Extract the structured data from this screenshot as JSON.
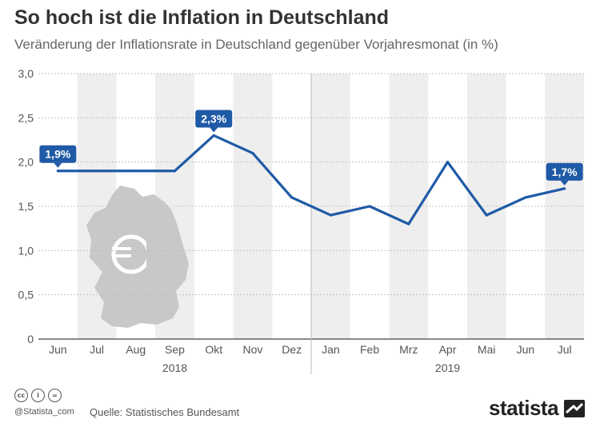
{
  "header": {
    "title": "So hoch ist die Inflation in Deutschland",
    "subtitle": "Veränderung der Inflationsrate in Deutschland gegenüber Vorjahresmonat (in %)"
  },
  "chart_data": {
    "type": "line",
    "categories": [
      "Jun",
      "Jul",
      "Aug",
      "Sep",
      "Okt",
      "Nov",
      "Dez",
      "Jan",
      "Feb",
      "Mrz",
      "Apr",
      "Mai",
      "Jun",
      "Jul"
    ],
    "year_labels": [
      {
        "label": "2018",
        "from": 0,
        "to": 6
      },
      {
        "label": "2019",
        "from": 7,
        "to": 13
      }
    ],
    "series": [
      {
        "values": [
          1.9,
          1.9,
          1.9,
          1.9,
          2.3,
          2.1,
          1.6,
          1.4,
          1.5,
          1.3,
          2.0,
          1.4,
          1.6,
          1.7
        ]
      }
    ],
    "data_labels": [
      {
        "index": 0,
        "text": "1,9%"
      },
      {
        "index": 4,
        "text": "2,3%"
      },
      {
        "index": 13,
        "text": "1,7%"
      }
    ],
    "yticks": [
      {
        "value": 0,
        "label": "0"
      },
      {
        "value": 0.5,
        "label": "0,5"
      },
      {
        "value": 1.0,
        "label": "1,0"
      },
      {
        "value": 1.5,
        "label": "1,5"
      },
      {
        "value": 2.0,
        "label": "2,0"
      },
      {
        "value": 2.5,
        "label": "2,5"
      },
      {
        "value": 3.0,
        "label": "3,0"
      }
    ],
    "ylim": [
      0,
      3.0
    ],
    "grid": true,
    "colors": {
      "line": "#1f5aa6",
      "label_bg": "#1f5aa6",
      "band": "#eeeeee",
      "map": "#c8c8c8"
    }
  },
  "footer": {
    "cc_icons": [
      "cc",
      "i",
      "="
    ],
    "handle": "@Statista_com",
    "source": "Quelle: Statistisches Bundesamt",
    "brand": "statista"
  }
}
